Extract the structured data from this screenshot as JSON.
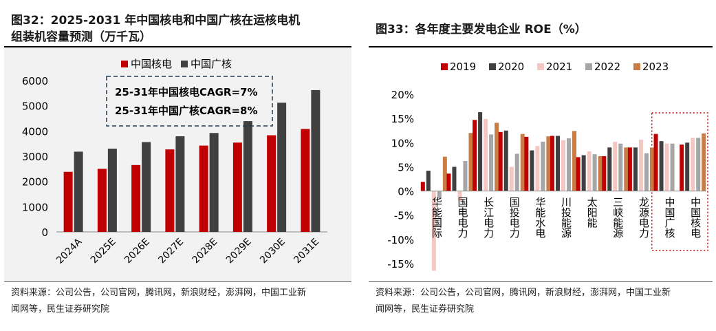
{
  "left": {
    "title_line1": "图32：2025-2031 年中国核电和中国广核在运核电机",
    "title_line2": "组装机容量预测（万千瓦）",
    "source_line1": "资料来源：公司公告，公司官网，腾讯网，新浪财经，澎湃网，中国工业新",
    "source_line2": "闻网等，民生证券研究院",
    "colors": {
      "series1": "#c00000",
      "series2": "#404040"
    },
    "chart_data": {
      "type": "bar",
      "categories": [
        "2024A",
        "2025E",
        "2026E",
        "2027E",
        "2028E",
        "2029E",
        "2030E",
        "2031E"
      ],
      "series": [
        {
          "name": "中国核电",
          "values": [
            2380,
            2500,
            2650,
            3270,
            3420,
            3540,
            3830,
            4080
          ]
        },
        {
          "name": "中国广核",
          "values": [
            3180,
            3300,
            3560,
            3790,
            3920,
            4390,
            5120,
            5620
          ]
        }
      ],
      "ylim": [
        0,
        6000
      ],
      "yticks": [
        0,
        1000,
        2000,
        3000,
        4000,
        5000,
        6000
      ],
      "annotations": [
        "25-31年中国核电CAGR=7%",
        "25-31年中国广核CAGR=8%"
      ],
      "legend": "top-center",
      "grid": false
    }
  },
  "right": {
    "title": "图33：各年度主要发电企业 ROE（%）",
    "source_line1": "资料来源：公司公告，公司官网，腾讯网，新浪财经，澎湃网，中国工业新",
    "source_line2": "闻网等，民生证券研究院",
    "colors": [
      "#c00000",
      "#404040",
      "#f4c7c3",
      "#a6a6a6",
      "#c97c45"
    ],
    "chart_data": {
      "type": "bar",
      "categories": [
        "华能国际",
        "国电电力",
        "长江电力",
        "国投电力",
        "华能水电",
        "川投能源",
        "太阳能",
        "三峡能源",
        "龙源电力",
        "中国广核",
        "中国核电"
      ],
      "series": [
        {
          "name": "2019",
          "values": [
            1.9,
            3.6,
            14.7,
            12.2,
            11.2,
            11.4,
            7.0,
            7.2,
            9.0,
            11.8,
            9.6
          ]
        },
        {
          "name": "2020",
          "values": [
            4.2,
            5.0,
            16.3,
            12.5,
            8.4,
            11.4,
            7.4,
            9.0,
            9.0,
            10.3,
            10.0
          ]
        },
        {
          "name": "2021",
          "values": [
            -16.5,
            -2.0,
            14.9,
            5.0,
            9.3,
            10.5,
            8.2,
            10.2,
            10.6,
            9.8,
            11.0
          ]
        },
        {
          "name": "2022",
          "values": [
            -1.5,
            6.2,
            11.7,
            7.7,
            10.2,
            10.9,
            7.6,
            9.8,
            7.8,
            9.8,
            11.0
          ]
        },
        {
          "name": "2023",
          "values": [
            7.1,
            12.0,
            14.1,
            11.8,
            11.3,
            12.4,
            7.2,
            9.0,
            9.0,
            null,
            11.9
          ]
        }
      ],
      "ylim": [
        -15,
        20
      ],
      "yticks": [
        "20%",
        "15%",
        "10%",
        "5%",
        "0%",
        "-5%",
        "-10%",
        "-15%"
      ],
      "highlight_categories": [
        "中国广核",
        "中国核电"
      ],
      "legend": "top",
      "grid": false
    }
  }
}
